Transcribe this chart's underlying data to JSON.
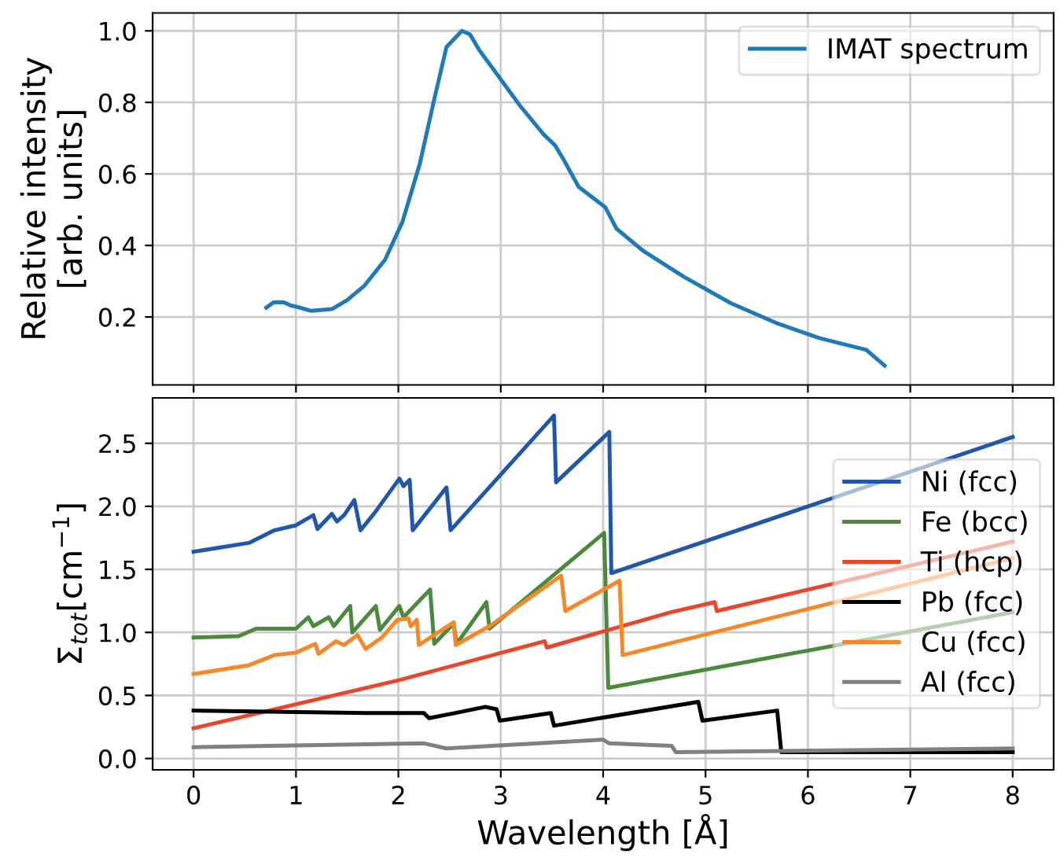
{
  "chart_data": [
    {
      "type": "line",
      "ylabel": "Relative intensity\n[arb. units]",
      "xlim": [
        -0.4,
        8.4
      ],
      "xticks": [
        0,
        1,
        2,
        3,
        4,
        5,
        6,
        7,
        8
      ],
      "ylim": [
        0.01,
        1.05
      ],
      "yticks": [
        0.2,
        0.4,
        0.6,
        0.8,
        {
          "value": 1,
          "label": "1.0"
        }
      ],
      "tick_labels": "y",
      "grid": true,
      "legend": "top right",
      "series": [
        {
          "name": "IMAT spectrum",
          "color": "#1f7ab8",
          "x": [
            0.71,
            0.78,
            0.88,
            0.95,
            1.04,
            1.15,
            1.35,
            1.5,
            1.67,
            1.87,
            2.04,
            2.21,
            2.35,
            2.47,
            2.62,
            2.7,
            2.79,
            2.96,
            3.19,
            3.42,
            3.53,
            3.62,
            3.76,
            4.02,
            4.13,
            4.39,
            4.79,
            5.25,
            5.71,
            6.11,
            6.57,
            6.75
          ],
          "values": [
            0.226,
            0.241,
            0.241,
            0.232,
            0.226,
            0.217,
            0.222,
            0.247,
            0.288,
            0.36,
            0.466,
            0.629,
            0.808,
            0.955,
            1.0,
            0.99,
            0.946,
            0.88,
            0.79,
            0.71,
            0.68,
            0.637,
            0.564,
            0.507,
            0.447,
            0.385,
            0.312,
            0.238,
            0.181,
            0.141,
            0.108,
            0.064
          ]
        }
      ]
    },
    {
      "type": "line",
      "xlabel": "Wavelength [Å]",
      "ylabel": "Σ$_{tot}$[cm$^{−1}$]",
      "xlim": [
        -0.4,
        8.4
      ],
      "xticks": [
        0,
        1,
        2,
        3,
        4,
        5,
        6,
        7,
        8
      ],
      "ylim": [
        -0.09,
        2.86
      ],
      "yticks": [
        {
          "value": 0,
          "label": "0.0"
        },
        0.5,
        {
          "value": 1,
          "label": "1.0"
        },
        1.5,
        {
          "value": 2,
          "label": "2.0"
        },
        2.5
      ],
      "grid": true,
      "legend": "right",
      "series": [
        {
          "name": "Ni (fcc)",
          "color": "#2157a8",
          "x": [
            0,
            0.54,
            0.79,
            1.0,
            1.17,
            1.21,
            1.35,
            1.4,
            1.47,
            1.57,
            1.63,
            1.77,
            2.01,
            2.05,
            2.11,
            2.14,
            2.47,
            2.51,
            3.52,
            3.54,
            4.06,
            4.08,
            8
          ],
          "values": [
            1.64,
            1.71,
            1.81,
            1.85,
            1.93,
            1.82,
            1.94,
            1.88,
            1.93,
            2.05,
            1.81,
            1.95,
            2.22,
            2.16,
            2.21,
            1.81,
            2.15,
            1.81,
            2.72,
            2.19,
            2.59,
            1.47,
            2.55
          ]
        },
        {
          "name": "Fe (bcc)",
          "color": "#4b8a3c",
          "x": [
            0,
            0.44,
            0.61,
            1.0,
            1.12,
            1.17,
            1.32,
            1.37,
            1.53,
            1.55,
            1.78,
            1.82,
            2.01,
            2.05,
            2.31,
            2.35,
            2.54,
            2.57,
            2.86,
            2.89,
            4.01,
            4.05,
            8
          ],
          "values": [
            0.96,
            0.97,
            1.03,
            1.03,
            1.12,
            1.05,
            1.12,
            1.05,
            1.21,
            1.0,
            1.21,
            1.02,
            1.21,
            1.12,
            1.34,
            0.91,
            1.07,
            0.91,
            1.24,
            1.03,
            1.79,
            0.56,
            1.16
          ]
        },
        {
          "name": "Ti (hcp)",
          "color": "#e8472e",
          "x": [
            0,
            2.0,
            3.43,
            3.45,
            4.66,
            5.09,
            5.11,
            8
          ],
          "values": [
            0.24,
            0.62,
            0.93,
            0.88,
            1.16,
            1.24,
            1.17,
            1.72
          ]
        },
        {
          "name": "Pb (fcc)",
          "color": "#000000",
          "x": [
            0,
            1.69,
            2.25,
            2.3,
            2.55,
            2.85,
            2.96,
            2.99,
            3.49,
            3.52,
            4.93,
            4.97,
            5.7,
            5.74,
            8
          ],
          "values": [
            0.38,
            0.36,
            0.36,
            0.32,
            0.36,
            0.41,
            0.39,
            0.3,
            0.36,
            0.26,
            0.45,
            0.3,
            0.38,
            0.05,
            0.05
          ]
        },
        {
          "name": "Cu (fcc)",
          "color": "#f5892a",
          "x": [
            0,
            0.54,
            0.79,
            1.0,
            1.19,
            1.22,
            1.39,
            1.47,
            1.6,
            1.68,
            1.84,
            1.99,
            2.1,
            2.12,
            2.18,
            2.2,
            2.54,
            2.56,
            2.89,
            3.59,
            3.63,
            4.16,
            4.19,
            8
          ],
          "values": [
            0.67,
            0.74,
            0.82,
            0.84,
            0.91,
            0.83,
            0.93,
            0.9,
            0.98,
            0.87,
            0.96,
            1.1,
            1.11,
            1.05,
            1.1,
            0.9,
            1.08,
            0.9,
            1.05,
            1.45,
            1.17,
            1.41,
            0.82,
            1.59
          ]
        },
        {
          "name": "Al (fcc)",
          "color": "#808080",
          "x": [
            0,
            2.25,
            2.47,
            4.0,
            4.06,
            4.67,
            4.71,
            8
          ],
          "values": [
            0.09,
            0.12,
            0.08,
            0.15,
            0.12,
            0.1,
            0.05,
            0.08
          ]
        }
      ]
    }
  ]
}
